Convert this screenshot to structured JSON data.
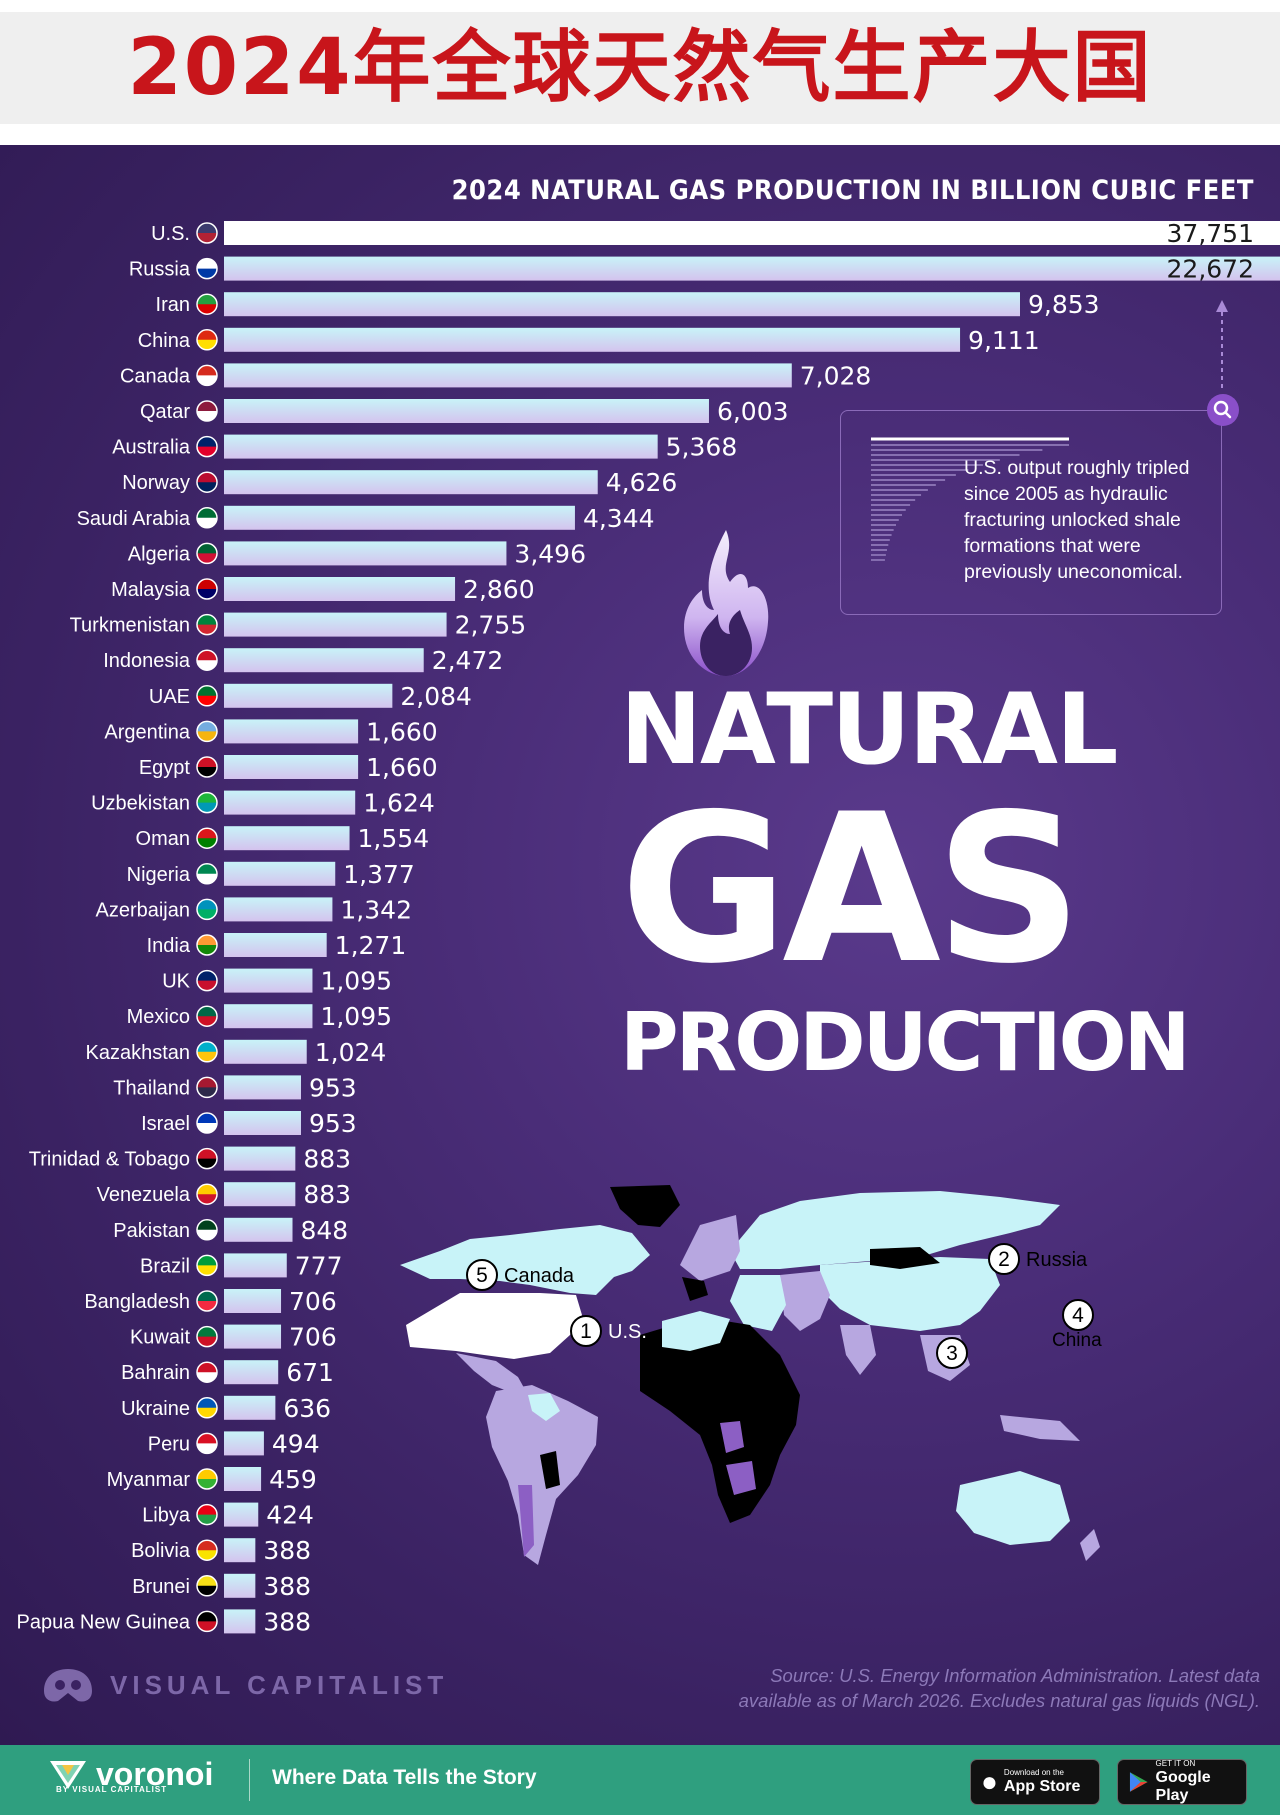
{
  "top_title": "2024年全球天然气生产大国",
  "chart_data": {
    "type": "bar",
    "title": "2024 NATURAL GAS PRODUCTION IN BILLION CUBIC FEET",
    "categories": [
      "U.S.",
      "Russia",
      "Iran",
      "China",
      "Canada",
      "Qatar",
      "Australia",
      "Norway",
      "Saudi Arabia",
      "Algeria",
      "Malaysia",
      "Turkmenistan",
      "Indonesia",
      "UAE",
      "Argentina",
      "Egypt",
      "Uzbekistan",
      "Oman",
      "Nigeria",
      "Azerbaijan",
      "India",
      "UK",
      "Mexico",
      "Kazakhstan",
      "Thailand",
      "Israel",
      "Trinidad & Tobago",
      "Venezuela",
      "Pakistan",
      "Brazil",
      "Bangladesh",
      "Kuwait",
      "Bahrain",
      "Ukraine",
      "Peru",
      "Myanmar",
      "Libya",
      "Bolivia",
      "Brunei",
      "Papua New Guinea"
    ],
    "values": [
      37751,
      22672,
      9853,
      9111,
      7028,
      6003,
      5368,
      4626,
      4344,
      3496,
      2860,
      2755,
      2472,
      2084,
      1660,
      1660,
      1624,
      1554,
      1377,
      1342,
      1271,
      1095,
      1095,
      1024,
      953,
      953,
      883,
      883,
      848,
      777,
      706,
      706,
      671,
      636,
      494,
      459,
      424,
      388,
      388,
      388
    ],
    "value_labels": [
      "37,751",
      "22,672",
      "9,853",
      "9,111",
      "7,028",
      "6,003",
      "5,368",
      "4,626",
      "4,344",
      "3,496",
      "2,860",
      "2,755",
      "2,472",
      "2,084",
      "1,660",
      "1,660",
      "1,624",
      "1,554",
      "1,377",
      "1,342",
      "1,271",
      "1,095",
      "1,095",
      "1,024",
      "953",
      "953",
      "883",
      "883",
      "848",
      "777",
      "706",
      "706",
      "671",
      "636",
      "494",
      "459",
      "424",
      "388",
      "388",
      "388"
    ],
    "truncated_bars": [
      "U.S.",
      "Russia"
    ],
    "orientation": "horizontal",
    "bar_gradient": [
      "#c8f3f8",
      "#d4c3ee"
    ],
    "xlabel": "",
    "ylabel": ""
  },
  "flag_colors": [
    [
      "#3c3b6e",
      "#b22234"
    ],
    [
      "#ffffff",
      "#0039a6"
    ],
    [
      "#239f40",
      "#da0000"
    ],
    [
      "#de2910",
      "#ffde00"
    ],
    [
      "#d52b1e",
      "#ffffff"
    ],
    [
      "#8d1b3d",
      "#ffffff"
    ],
    [
      "#012169",
      "#e4002b"
    ],
    [
      "#ba0c2f",
      "#00205b"
    ],
    [
      "#006c35",
      "#ffffff"
    ],
    [
      "#006233",
      "#d21034"
    ],
    [
      "#cc0001",
      "#010066"
    ],
    [
      "#00843d",
      "#d22630"
    ],
    [
      "#ce1126",
      "#ffffff"
    ],
    [
      "#00732f",
      "#ff0000"
    ],
    [
      "#74acdf",
      "#f6b40e"
    ],
    [
      "#ce1126",
      "#000000"
    ],
    [
      "#1eb53a",
      "#0099b5"
    ],
    [
      "#db161b",
      "#008000"
    ],
    [
      "#008751",
      "#ffffff"
    ],
    [
      "#0092bc",
      "#00af66"
    ],
    [
      "#ff9933",
      "#138808"
    ],
    [
      "#012169",
      "#c8102e"
    ],
    [
      "#006847",
      "#ce1126"
    ],
    [
      "#00afca",
      "#fec50c"
    ],
    [
      "#a51931",
      "#2d2a4a"
    ],
    [
      "#0038b8",
      "#ffffff"
    ],
    [
      "#ce1126",
      "#000000"
    ],
    [
      "#ffcc00",
      "#cf142b"
    ],
    [
      "#01411c",
      "#ffffff"
    ],
    [
      "#009c3b",
      "#ffdf00"
    ],
    [
      "#006a4e",
      "#f42a41"
    ],
    [
      "#007a3d",
      "#ce1126"
    ],
    [
      "#ce1126",
      "#ffffff"
    ],
    [
      "#0057b7",
      "#ffd700"
    ],
    [
      "#d91023",
      "#ffffff"
    ],
    [
      "#fecb00",
      "#34b233"
    ],
    [
      "#e70013",
      "#239e46"
    ],
    [
      "#d52b1e",
      "#f9e300"
    ],
    [
      "#f7e017",
      "#000000"
    ],
    [
      "#000000",
      "#ce1126"
    ]
  ],
  "annotation": {
    "text": "U.S. output roughly tripled since 2005 as hydraulic fracturing unlocked shale formations that were previously uneconomical.",
    "search_icon": "magnifier-icon"
  },
  "poster_title": {
    "line1": "NATURAL",
    "line2": "GAS",
    "line3": "PRODUCTION"
  },
  "map": {
    "title": "",
    "rank_labels": [
      {
        "rank": "1",
        "country": "U.S."
      },
      {
        "rank": "2",
        "country": "Russia"
      },
      {
        "rank": "3",
        "country": ""
      },
      {
        "rank": "4",
        "country": "China"
      },
      {
        "rank": "5",
        "country": "Canada"
      }
    ],
    "colors": {
      "high": "#c8f3f8",
      "mid": "#b7a7e0",
      "low": "#8c5fc4",
      "none": "#000000",
      "us": "#ffffff"
    }
  },
  "brand": {
    "visual_capitalist": "VISUAL CAPITALIST"
  },
  "source_note": "Source: U.S. Energy Information Administration. Latest data available as of March 2026. Excludes natural gas liquids (NGL).",
  "footer": {
    "logo_name": "voronoi",
    "logo_sub": "BY VISUAL CAPITALIST",
    "tagline": "Where Data Tells the Story",
    "app_store_small": "Download on the",
    "app_store_big": "App Store",
    "google_play_small": "GET IT ON",
    "google_play_big": "Google Play"
  }
}
